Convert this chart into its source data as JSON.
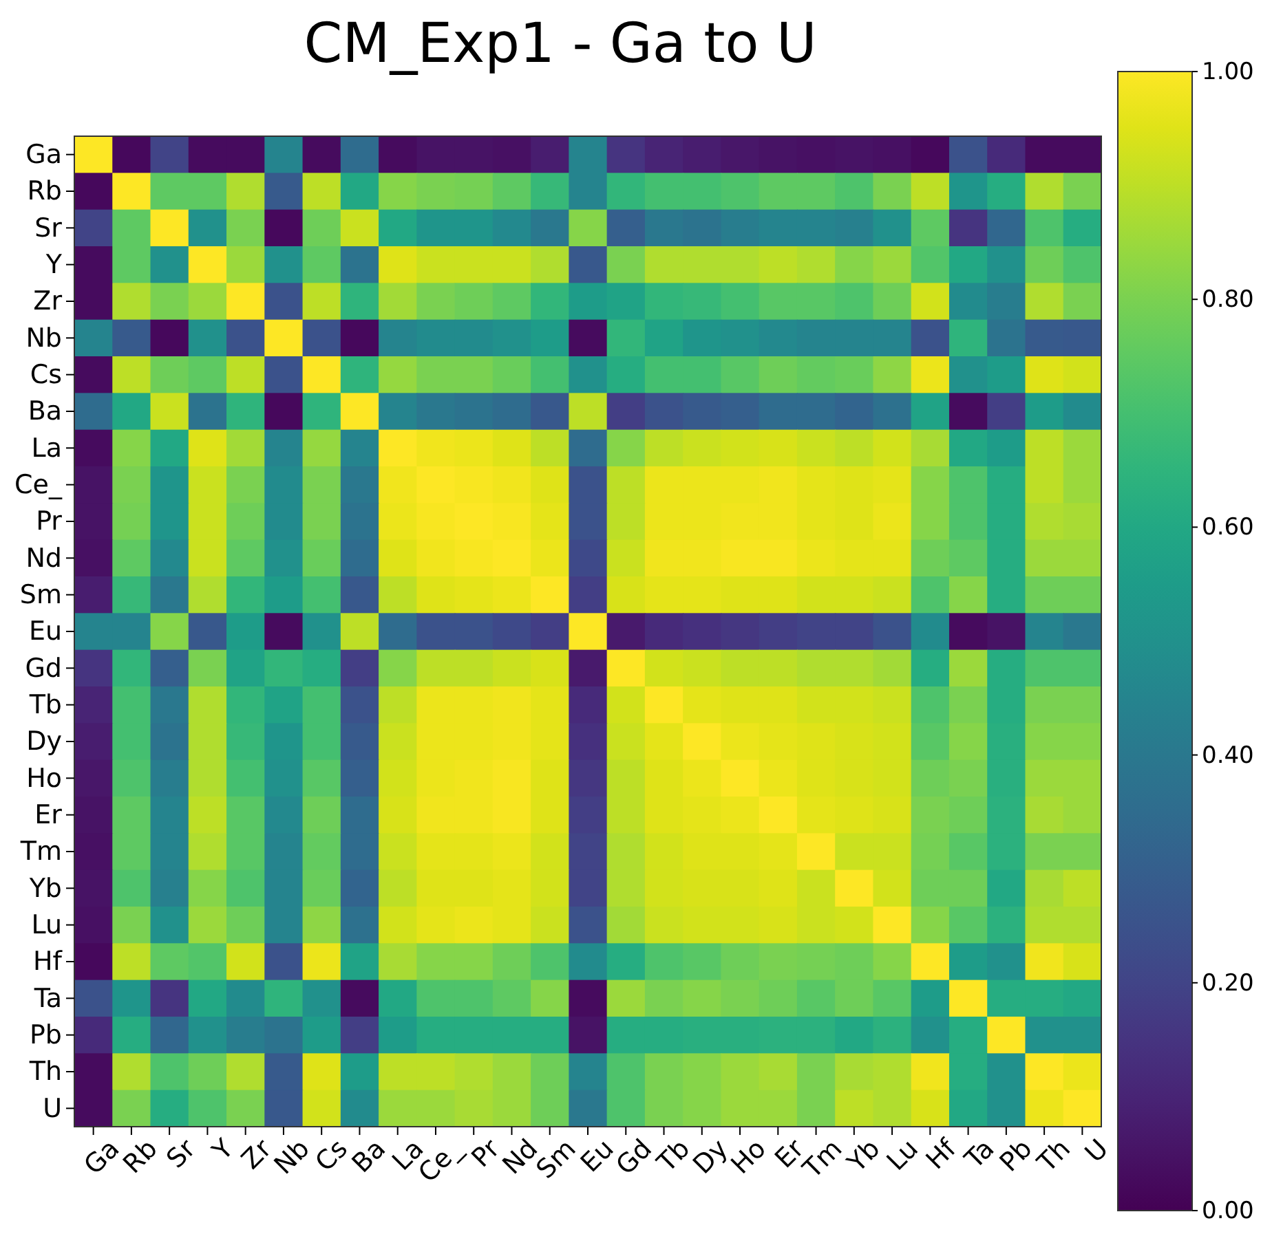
{
  "chart_data": {
    "type": "heatmap",
    "title": "CM_Exp1 - Ga to U",
    "categories": [
      "Ga",
      "Rb",
      "Sr",
      "Y",
      "Zr",
      "Nb",
      "Cs",
      "Ba",
      "La",
      "Ce_",
      "Pr",
      "Nd",
      "Sm",
      "Eu",
      "Gd",
      "Tb",
      "Dy",
      "Ho",
      "Er",
      "Tm",
      "Yb",
      "Lu",
      "Hf",
      "Ta",
      "Pb",
      "Th",
      "U"
    ],
    "y_categories": [
      "Ga",
      "Rb",
      "Sr",
      "Y",
      "Zr",
      "Nb",
      "Cs",
      "Ba",
      "La",
      "Ce_",
      "Pr",
      "Nd",
      "Sm",
      "Eu",
      "Gd",
      "Tb",
      "Dy",
      "Ho",
      "Er",
      "Tm",
      "Yb",
      "Lu",
      "Hf",
      "Ta",
      "Pb",
      "Th",
      "U"
    ],
    "cells": [
      [
        1,
        0.02,
        0.2,
        0.03,
        0.03,
        0.45,
        0.03,
        0.35,
        0.03,
        0.05,
        0.05,
        0.04,
        0.08,
        0.45,
        0.15,
        0.1,
        0.08,
        0.06,
        0.05,
        0.04,
        0.05,
        0.04,
        0.02,
        0.25,
        0.12,
        0.03,
        0.03
      ],
      [
        0.02,
        1,
        0.75,
        0.75,
        0.88,
        0.28,
        0.9,
        0.6,
        0.82,
        0.8,
        0.79,
        0.75,
        0.67,
        0.45,
        0.66,
        0.7,
        0.7,
        0.72,
        0.75,
        0.75,
        0.72,
        0.8,
        0.9,
        0.52,
        0.62,
        0.88,
        0.8
      ],
      [
        0.2,
        0.75,
        1,
        0.5,
        0.8,
        0.02,
        0.78,
        0.92,
        0.6,
        0.52,
        0.52,
        0.47,
        0.4,
        0.82,
        0.3,
        0.4,
        0.38,
        0.42,
        0.45,
        0.45,
        0.43,
        0.5,
        0.75,
        0.15,
        0.33,
        0.72,
        0.62
      ],
      [
        0.03,
        0.75,
        0.5,
        1,
        0.85,
        0.5,
        0.75,
        0.38,
        0.95,
        0.92,
        0.92,
        0.92,
        0.88,
        0.27,
        0.8,
        0.88,
        0.88,
        0.88,
        0.9,
        0.88,
        0.82,
        0.85,
        0.73,
        0.6,
        0.5,
        0.78,
        0.72
      ],
      [
        0.03,
        0.88,
        0.8,
        0.85,
        1,
        0.25,
        0.9,
        0.65,
        0.86,
        0.8,
        0.78,
        0.75,
        0.66,
        0.55,
        0.58,
        0.66,
        0.67,
        0.7,
        0.74,
        0.74,
        0.72,
        0.78,
        0.93,
        0.48,
        0.42,
        0.88,
        0.8
      ],
      [
        0.45,
        0.28,
        0.02,
        0.5,
        0.25,
        1,
        0.25,
        0.02,
        0.45,
        0.48,
        0.48,
        0.5,
        0.55,
        0.03,
        0.66,
        0.58,
        0.52,
        0.5,
        0.47,
        0.45,
        0.45,
        0.45,
        0.25,
        0.65,
        0.38,
        0.28,
        0.27
      ],
      [
        0.03,
        0.9,
        0.78,
        0.75,
        0.9,
        0.25,
        1,
        0.65,
        0.84,
        0.8,
        0.8,
        0.77,
        0.7,
        0.5,
        0.62,
        0.7,
        0.7,
        0.74,
        0.78,
        0.76,
        0.77,
        0.83,
        0.97,
        0.5,
        0.55,
        0.95,
        0.93
      ],
      [
        0.35,
        0.6,
        0.92,
        0.38,
        0.65,
        0.02,
        0.65,
        1,
        0.45,
        0.4,
        0.38,
        0.35,
        0.27,
        0.9,
        0.18,
        0.25,
        0.28,
        0.3,
        0.35,
        0.35,
        0.32,
        0.37,
        0.58,
        0.03,
        0.18,
        0.55,
        0.48
      ],
      [
        0.03,
        0.82,
        0.6,
        0.95,
        0.86,
        0.45,
        0.84,
        0.45,
        1,
        0.98,
        0.97,
        0.95,
        0.9,
        0.35,
        0.82,
        0.9,
        0.92,
        0.93,
        0.94,
        0.92,
        0.9,
        0.93,
        0.87,
        0.6,
        0.55,
        0.9,
        0.85
      ],
      [
        0.05,
        0.8,
        0.52,
        0.92,
        0.8,
        0.48,
        0.8,
        0.4,
        0.98,
        1,
        0.99,
        0.98,
        0.95,
        0.25,
        0.9,
        0.97,
        0.97,
        0.97,
        0.98,
        0.96,
        0.95,
        0.96,
        0.82,
        0.72,
        0.62,
        0.9,
        0.85
      ],
      [
        0.05,
        0.79,
        0.52,
        0.92,
        0.78,
        0.48,
        0.8,
        0.38,
        0.97,
        0.99,
        1,
        0.99,
        0.96,
        0.25,
        0.9,
        0.97,
        0.97,
        0.98,
        0.98,
        0.96,
        0.95,
        0.97,
        0.82,
        0.72,
        0.62,
        0.88,
        0.87
      ],
      [
        0.04,
        0.75,
        0.47,
        0.92,
        0.75,
        0.5,
        0.77,
        0.35,
        0.95,
        0.98,
        0.99,
        1,
        0.97,
        0.22,
        0.92,
        0.98,
        0.98,
        0.99,
        0.99,
        0.97,
        0.96,
        0.96,
        0.78,
        0.75,
        0.62,
        0.85,
        0.85
      ],
      [
        0.08,
        0.67,
        0.4,
        0.88,
        0.66,
        0.55,
        0.7,
        0.27,
        0.9,
        0.95,
        0.96,
        0.97,
        1,
        0.18,
        0.94,
        0.96,
        0.96,
        0.95,
        0.95,
        0.93,
        0.93,
        0.92,
        0.72,
        0.82,
        0.62,
        0.78,
        0.78
      ],
      [
        0.45,
        0.45,
        0.82,
        0.27,
        0.55,
        0.03,
        0.5,
        0.9,
        0.35,
        0.25,
        0.25,
        0.22,
        0.18,
        1,
        0.07,
        0.12,
        0.14,
        0.16,
        0.18,
        0.2,
        0.2,
        0.25,
        0.48,
        0.03,
        0.05,
        0.45,
        0.4
      ],
      [
        0.15,
        0.66,
        0.3,
        0.8,
        0.58,
        0.66,
        0.62,
        0.18,
        0.82,
        0.9,
        0.9,
        0.92,
        0.94,
        0.07,
        1,
        0.93,
        0.92,
        0.9,
        0.9,
        0.88,
        0.88,
        0.86,
        0.62,
        0.85,
        0.62,
        0.72,
        0.72
      ],
      [
        0.1,
        0.7,
        0.4,
        0.88,
        0.66,
        0.58,
        0.7,
        0.25,
        0.9,
        0.97,
        0.97,
        0.98,
        0.96,
        0.12,
        0.93,
        1,
        0.96,
        0.95,
        0.95,
        0.93,
        0.93,
        0.92,
        0.72,
        0.8,
        0.62,
        0.8,
        0.8
      ],
      [
        0.08,
        0.7,
        0.38,
        0.88,
        0.67,
        0.52,
        0.7,
        0.28,
        0.92,
        0.97,
        0.97,
        0.98,
        0.96,
        0.14,
        0.92,
        0.96,
        1,
        0.97,
        0.96,
        0.95,
        0.94,
        0.93,
        0.74,
        0.82,
        0.63,
        0.82,
        0.82
      ],
      [
        0.06,
        0.72,
        0.42,
        0.88,
        0.7,
        0.5,
        0.74,
        0.3,
        0.93,
        0.97,
        0.98,
        0.99,
        0.95,
        0.16,
        0.9,
        0.95,
        0.97,
        1,
        0.97,
        0.95,
        0.94,
        0.93,
        0.78,
        0.8,
        0.63,
        0.85,
        0.85
      ],
      [
        0.05,
        0.75,
        0.45,
        0.9,
        0.74,
        0.47,
        0.78,
        0.35,
        0.94,
        0.98,
        0.98,
        0.99,
        0.95,
        0.18,
        0.9,
        0.95,
        0.96,
        0.97,
        1,
        0.96,
        0.95,
        0.94,
        0.8,
        0.78,
        0.64,
        0.87,
        0.85
      ],
      [
        0.04,
        0.75,
        0.45,
        0.88,
        0.74,
        0.45,
        0.76,
        0.35,
        0.92,
        0.96,
        0.96,
        0.97,
        0.93,
        0.2,
        0.88,
        0.93,
        0.95,
        0.95,
        0.96,
        1,
        0.92,
        0.92,
        0.79,
        0.74,
        0.64,
        0.8,
        0.8
      ],
      [
        0.05,
        0.72,
        0.43,
        0.82,
        0.72,
        0.45,
        0.77,
        0.32,
        0.9,
        0.95,
        0.95,
        0.96,
        0.93,
        0.2,
        0.88,
        0.93,
        0.94,
        0.94,
        0.95,
        0.92,
        1,
        0.93,
        0.78,
        0.78,
        0.6,
        0.87,
        0.9
      ],
      [
        0.04,
        0.8,
        0.5,
        0.85,
        0.78,
        0.45,
        0.83,
        0.37,
        0.93,
        0.96,
        0.97,
        0.96,
        0.92,
        0.25,
        0.86,
        0.92,
        0.93,
        0.93,
        0.94,
        0.92,
        0.93,
        1,
        0.82,
        0.74,
        0.64,
        0.88,
        0.88
      ],
      [
        0.02,
        0.9,
        0.75,
        0.73,
        0.93,
        0.25,
        0.97,
        0.58,
        0.87,
        0.82,
        0.82,
        0.78,
        0.72,
        0.48,
        0.62,
        0.72,
        0.74,
        0.78,
        0.8,
        0.79,
        0.78,
        0.82,
        1,
        0.55,
        0.5,
        0.98,
        0.94
      ],
      [
        0.25,
        0.52,
        0.15,
        0.6,
        0.48,
        0.65,
        0.5,
        0.03,
        0.6,
        0.72,
        0.72,
        0.75,
        0.82,
        0.03,
        0.85,
        0.8,
        0.82,
        0.8,
        0.78,
        0.74,
        0.78,
        0.74,
        0.55,
        1,
        0.62,
        0.62,
        0.6
      ],
      [
        0.12,
        0.62,
        0.33,
        0.5,
        0.42,
        0.38,
        0.55,
        0.18,
        0.55,
        0.62,
        0.62,
        0.62,
        0.62,
        0.05,
        0.62,
        0.62,
        0.63,
        0.63,
        0.64,
        0.64,
        0.6,
        0.64,
        0.5,
        0.62,
        1,
        0.5,
        0.5
      ],
      [
        0.03,
        0.88,
        0.72,
        0.78,
        0.88,
        0.28,
        0.95,
        0.55,
        0.9,
        0.9,
        0.88,
        0.85,
        0.78,
        0.45,
        0.72,
        0.8,
        0.82,
        0.85,
        0.87,
        0.8,
        0.87,
        0.88,
        0.98,
        0.62,
        0.5,
        1,
        0.97
      ],
      [
        0.03,
        0.8,
        0.62,
        0.72,
        0.8,
        0.27,
        0.93,
        0.48,
        0.85,
        0.85,
        0.87,
        0.85,
        0.78,
        0.4,
        0.72,
        0.8,
        0.82,
        0.85,
        0.85,
        0.8,
        0.9,
        0.88,
        0.94,
        0.6,
        0.5,
        0.97,
        1
      ]
    ],
    "clim": [
      0,
      1
    ],
    "cticks": [
      {
        "value": 0,
        "label": "0.00"
      },
      {
        "value": 0.2,
        "label": "0.20"
      },
      {
        "value": 0.4,
        "label": "0.40"
      },
      {
        "value": 0.6,
        "label": "0.60"
      },
      {
        "value": 0.8,
        "label": "0.80"
      },
      {
        "value": 1,
        "label": "1.00"
      }
    ]
  }
}
